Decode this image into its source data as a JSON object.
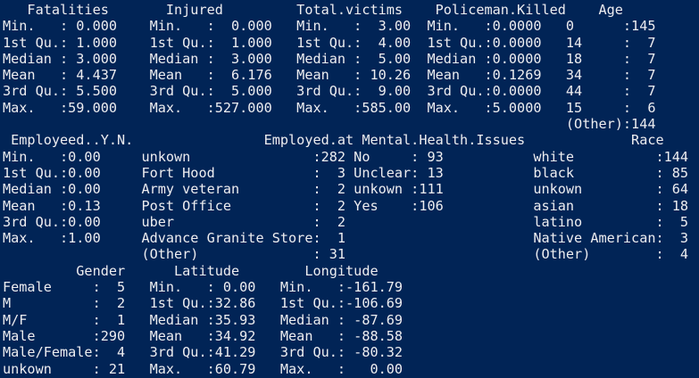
{
  "terminal": {
    "app": "powershell-r-console",
    "background_color": "#012456",
    "foreground_color": "#EEEDF0",
    "lines": [
      "   Fatalities       Injured         Total.victims    Policeman.Killed    Age",
      "Min.   : 0.000    Min.   :  0.000   Min.   :  3.00  Min.   :0.0000   0      :145",
      "1st Qu.: 1.000    1st Qu.:  1.000   1st Qu.:  4.00  1st Qu.:0.0000   14     :  7",
      "Median : 3.000    Median :  3.000   Median :  5.00  Median :0.0000   18     :  7",
      "Mean   : 4.437    Mean   :  6.176   Mean   : 10.26  Mean   :0.1269   34     :  7",
      "3rd Qu.: 5.500    3rd Qu.:  5.000   3rd Qu.:  9.00  3rd Qu.:0.0000   44     :  7",
      "Max.   :59.000    Max.   :527.000   Max.   :585.00  Max.   :5.0000   15     :  6",
      "                                                                     (Other):144",
      " Employeed..Y.N.                Employed.at Mental.Health.Issues             Race",
      "Min.   :0.00     unkown               :282 No     : 93           white          :144",
      "1st Qu.:0.00     Fort Hood            :  3 Unclear: 13           black          : 85",
      "Median :0.00     Army veteran         :  2 unkown :111           unkown         : 64",
      "Mean   :0.13     Post Office          :  2 Yes    :106           asian          : 18",
      "3rd Qu.:0.00     uber                 :  2                       latino         :  5",
      "Max.   :1.00     Advance Granite Store:  1                       Native American:  3",
      "                 (Other)              : 31                       (Other)        :  4",
      "         Gender      Latitude        Longitude",
      "Female     :  5   Min.   : 0.00   Min.   :-161.79",
      "M          :  2   1st Qu.:32.86   1st Qu.:-106.69",
      "M/F        :  1   Median :35.93   Median : -87.69",
      "Male       :290   Mean   :34.92   Mean   : -88.58",
      "Male/Female:  4   3rd Qu.:41.29   3rd Qu.: -80.32",
      "unkown     : 21   Max.   :60.79   Max.   :   0.00"
    ]
  },
  "summary": {
    "Fatalities": {
      "Min": "0.000",
      "1st Qu": "1.000",
      "Median": "3.000",
      "Mean": "4.437",
      "3rd Qu": "5.500",
      "Max": "59.000"
    },
    "Injured": {
      "Min": "0.000",
      "1st Qu": "1.000",
      "Median": "3.000",
      "Mean": "6.176",
      "3rd Qu": "5.000",
      "Max": "527.000"
    },
    "Total_victims": {
      "Min": "3.00",
      "1st Qu": "4.00",
      "Median": "5.00",
      "Mean": "10.26",
      "3rd Qu": "9.00",
      "Max": "585.00"
    },
    "Policeman_Killed": {
      "Min": "0.0000",
      "1st Qu": "0.0000",
      "Median": "0.0000",
      "Mean": "0.1269",
      "3rd Qu": "0.0000",
      "Max": "5.0000"
    },
    "Age": [
      {
        "level": "0",
        "count": "145"
      },
      {
        "level": "14",
        "count": "7"
      },
      {
        "level": "18",
        "count": "7"
      },
      {
        "level": "34",
        "count": "7"
      },
      {
        "level": "44",
        "count": "7"
      },
      {
        "level": "15",
        "count": "6"
      },
      {
        "level": "(Other)",
        "count": "144"
      }
    ],
    "Employeed_Y_N": {
      "Min": "0.00",
      "1st Qu": "0.00",
      "Median": "0.00",
      "Mean": "0.13",
      "3rd Qu": "0.00",
      "Max": "1.00"
    },
    "Employed_at": [
      {
        "level": "unkown",
        "count": "282"
      },
      {
        "level": "Fort Hood",
        "count": "3"
      },
      {
        "level": "Army veteran",
        "count": "2"
      },
      {
        "level": "Post Office",
        "count": "2"
      },
      {
        "level": "uber",
        "count": "2"
      },
      {
        "level": "Advance Granite Store",
        "count": "1"
      },
      {
        "level": "(Other)",
        "count": "31"
      }
    ],
    "Mental_Health_Issues": [
      {
        "level": "No",
        "count": "93"
      },
      {
        "level": "Unclear",
        "count": "13"
      },
      {
        "level": "unkown",
        "count": "111"
      },
      {
        "level": "Yes",
        "count": "106"
      }
    ],
    "Race": [
      {
        "level": "white",
        "count": "144"
      },
      {
        "level": "black",
        "count": "85"
      },
      {
        "level": "unkown",
        "count": "64"
      },
      {
        "level": "asian",
        "count": "18"
      },
      {
        "level": "latino",
        "count": "5"
      },
      {
        "level": "Native American",
        "count": "3"
      },
      {
        "level": "(Other)",
        "count": "4"
      }
    ],
    "Gender": [
      {
        "level": "Female",
        "count": "5"
      },
      {
        "level": "M",
        "count": "2"
      },
      {
        "level": "M/F",
        "count": "1"
      },
      {
        "level": "Male",
        "count": "290"
      },
      {
        "level": "Male/Female",
        "count": "4"
      },
      {
        "level": "unkown",
        "count": "21"
      }
    ],
    "Latitude": {
      "Min": "0.00",
      "1st Qu": "32.86",
      "Median": "35.93",
      "Mean": "34.92",
      "3rd Qu": "41.29",
      "Max": "60.79"
    },
    "Longitude": {
      "Min": "-161.79",
      "1st Qu": "-106.69",
      "Median": "-87.69",
      "Mean": "-88.58",
      "3rd Qu": "-80.32",
      "Max": "0.00"
    }
  }
}
